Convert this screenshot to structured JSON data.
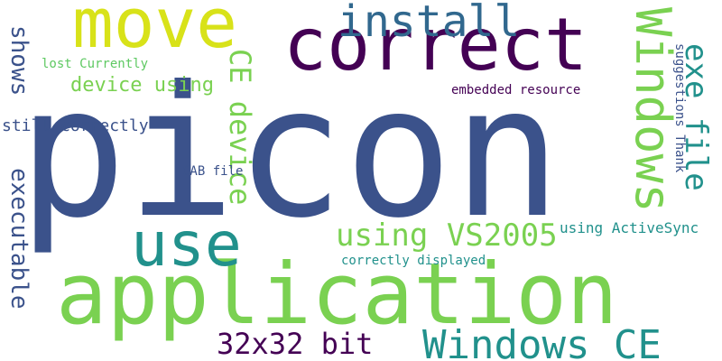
{
  "word_cloud": {
    "words": [
      {
        "id": "picon",
        "text": "picon",
        "color": "#3b528b"
      },
      {
        "id": "application",
        "text": "application",
        "color": "#7ad151"
      },
      {
        "id": "correct",
        "text": "correct",
        "color": "#440154"
      },
      {
        "id": "move",
        "text": "move",
        "color": "#d8e219"
      },
      {
        "id": "install",
        "text": "install",
        "color": "#31688e"
      },
      {
        "id": "windows_big",
        "text": "Windows",
        "color": "#7ad151"
      },
      {
        "id": "exe_file",
        "text": "exe file",
        "color": "#21918c"
      },
      {
        "id": "use",
        "text": "use",
        "color": "#21918c"
      },
      {
        "id": "windows_ce",
        "text": "Windows CE",
        "color": "#21918c"
      },
      {
        "id": "bit_32x32",
        "text": "32x32 bit",
        "color": "#440154"
      },
      {
        "id": "using_vs2005",
        "text": "using VS2005",
        "color": "#7ad151"
      },
      {
        "id": "ce_device",
        "text": "CE device",
        "color": "#7ad151"
      },
      {
        "id": "device_using",
        "text": "device using",
        "color": "#7ad151"
      },
      {
        "id": "shows",
        "text": "shows",
        "color": "#3b528b"
      },
      {
        "id": "executable",
        "text": "executable",
        "color": "#3b528b"
      },
      {
        "id": "lost_currently",
        "text": "lost Currently",
        "color": "#5ec962"
      },
      {
        "id": "still_correctly",
        "text": "still correctly",
        "color": "#3b528b"
      },
      {
        "id": "cab_file",
        "text": "CAB file",
        "color": "#3b528b"
      },
      {
        "id": "embedded_resource",
        "text": "embedded resource",
        "color": "#440154"
      },
      {
        "id": "suggestions_thank",
        "text": "suggestions Thank",
        "color": "#3b528b"
      },
      {
        "id": "using_activesync",
        "text": "using ActiveSync",
        "color": "#21918c"
      },
      {
        "id": "correctly_displayed",
        "text": "correctly displayed",
        "color": "#21918c"
      }
    ]
  }
}
